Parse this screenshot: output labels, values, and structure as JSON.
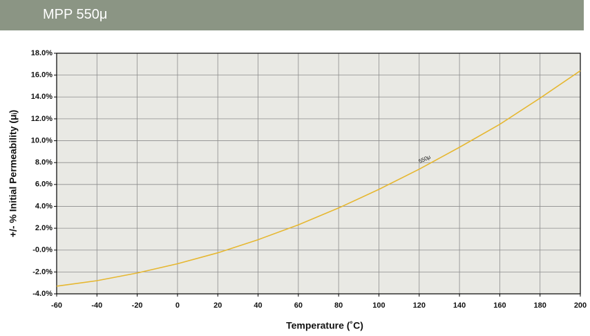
{
  "header": {
    "title": "MPP 550μ"
  },
  "chart_data": {
    "type": "line",
    "xlabel": "Temperature (˚C)",
    "ylabel": "+/- % Initial Permeability (μᵢ)",
    "x": [
      -60,
      -40,
      -20,
      0,
      20,
      40,
      60,
      80,
      100,
      120,
      140,
      160,
      180,
      200
    ],
    "series": [
      {
        "name": "550μ",
        "color": "#e6b730",
        "values": [
          -3.3,
          -2.8,
          -2.1,
          -1.25,
          -0.25,
          0.95,
          2.3,
          3.85,
          5.55,
          7.4,
          9.4,
          11.5,
          13.9,
          16.4
        ]
      }
    ],
    "xlim": [
      -60,
      200
    ],
    "xticks": [
      -60,
      -40,
      -20,
      0,
      20,
      40,
      60,
      80,
      100,
      120,
      140,
      160,
      180,
      200
    ],
    "ylim": [
      -4,
      18
    ],
    "yticks": [
      {
        "value": -4,
        "label": "-4.0%"
      },
      {
        "value": -2,
        "label": "-2.0%"
      },
      {
        "value": 0,
        "label": "-0.0%"
      },
      {
        "value": 2,
        "label": "2.0%"
      },
      {
        "value": 4,
        "label": "4.0%"
      },
      {
        "value": 6,
        "label": "6.0%"
      },
      {
        "value": 8,
        "label": "8.0%"
      },
      {
        "value": 10,
        "label": "10.0%"
      },
      {
        "value": 12,
        "label": "12.0%"
      },
      {
        "value": 14,
        "label": "14.0%"
      },
      {
        "value": 16,
        "label": "16.0%"
      },
      {
        "value": 18,
        "label": "18.0%"
      }
    ],
    "grid": true
  }
}
